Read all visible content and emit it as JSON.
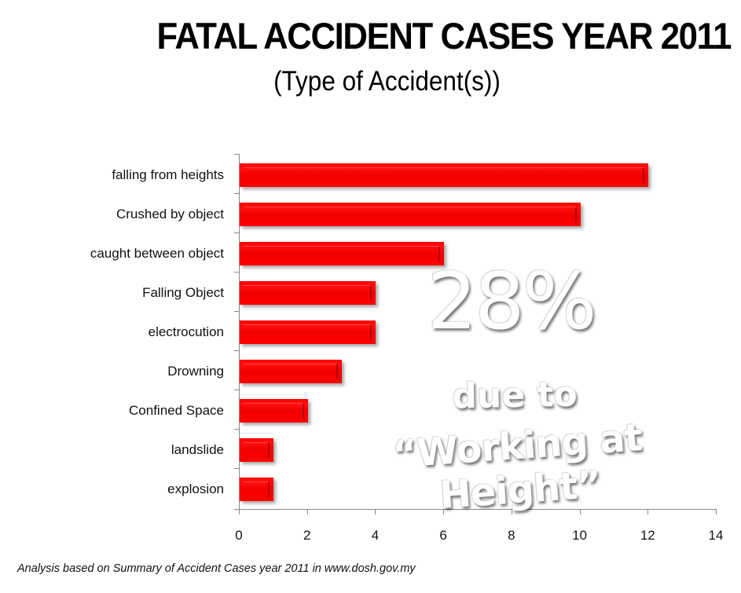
{
  "header": {
    "title": "FATAL ACCIDENT CASES YEAR 2011",
    "subtitle": "(Type of Accident(s))"
  },
  "overlay": {
    "percent": "28%",
    "line1": "due to",
    "line2": "“Working at Height”"
  },
  "footnote": "Analysis based on Summary of Accident Cases year 2011 in www.dosh.gov.my",
  "colors": {
    "bar": "#ff0000",
    "axis": "#888888",
    "overlay_text": "#ffffff"
  },
  "chart_data": {
    "type": "bar",
    "orientation": "horizontal",
    "title": "FATAL ACCIDENT CASES YEAR 2011",
    "subtitle": "(Type of Accident(s))",
    "categories": [
      "falling from heights",
      "Crushed by object",
      "caught between object",
      "Falling Object",
      "electrocution",
      "Drowning",
      "Confined Space",
      "landslide",
      "explosion"
    ],
    "values": [
      12,
      10,
      6,
      4,
      4,
      3,
      2,
      1,
      1
    ],
    "xlabel": "",
    "ylabel": "",
    "xlim": [
      0,
      14
    ],
    "xticks": [
      "0",
      "2",
      "4",
      "6",
      "8",
      "10",
      "12",
      "14"
    ],
    "grid": false,
    "legend": null,
    "annotations": [
      "28%",
      "due to",
      "“Working at Height”"
    ]
  }
}
